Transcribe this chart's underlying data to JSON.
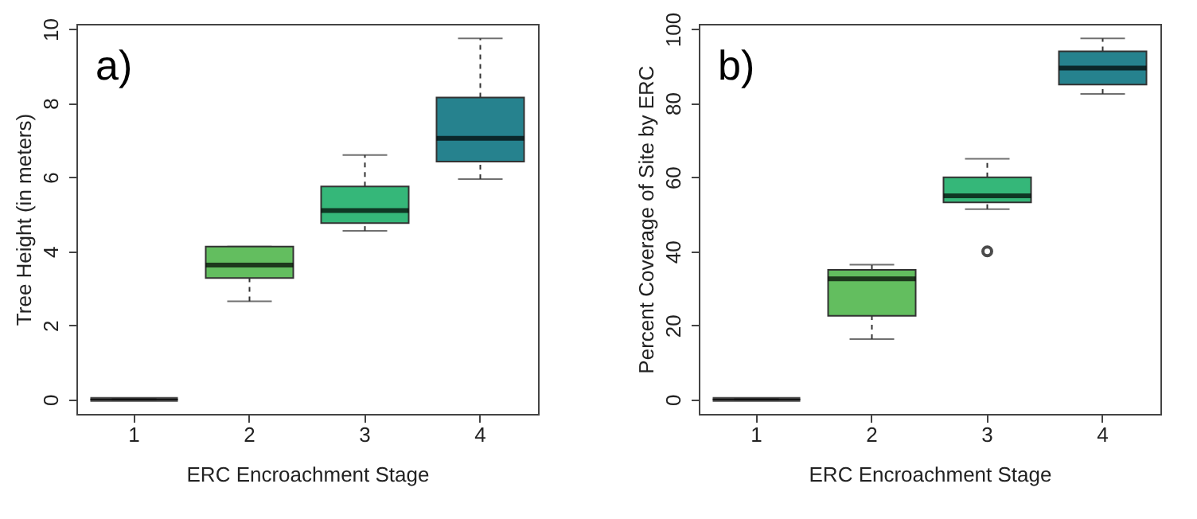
{
  "chart_data": [
    {
      "type": "box",
      "xlabel": "ERC Encroachment Stage",
      "ylabel": "Tree Height (in meters)",
      "annotations": [
        "a)"
      ],
      "categories": [
        "1",
        "2",
        "3",
        "4"
      ],
      "colors": [
        null,
        "#63be5f",
        "#35b779",
        "#26828e"
      ],
      "ylim": [
        -0.39,
        10.14
      ],
      "yticks": [
        0,
        2,
        4,
        6,
        8,
        10
      ],
      "grid": false,
      "boxes": [
        {
          "low": 0,
          "q1": 0,
          "median": 0,
          "q3": 0,
          "high": 0
        },
        {
          "low": 2.65,
          "q1": 3.28,
          "median": 3.63,
          "q3": 4.13,
          "high": 4.13
        },
        {
          "low": 4.55,
          "q1": 4.76,
          "median": 5.1,
          "q3": 5.75,
          "high": 6.6
        },
        {
          "low": 5.95,
          "q1": 6.42,
          "median": 7.05,
          "q3": 8.15,
          "high": 9.75
        }
      ]
    },
    {
      "type": "box",
      "xlabel": "ERC Encroachment Stage",
      "ylabel": "Percent Coverage of Site by ERC",
      "annotations": [
        "b)"
      ],
      "categories": [
        "1",
        "2",
        "3",
        "4"
      ],
      "colors": [
        null,
        "#63be5f",
        "#35b779",
        "#26828e"
      ],
      "ylim": [
        -3.9,
        101.4
      ],
      "yticks": [
        0,
        20,
        40,
        60,
        80,
        100
      ],
      "grid": false,
      "boxes": [
        {
          "low": 0,
          "q1": 0,
          "median": 0,
          "q3": 0,
          "high": 0
        },
        {
          "low": 16.3,
          "q1": 22.6,
          "median": 32.6,
          "q3": 35,
          "high": 36.4
        },
        {
          "low": 51.4,
          "q1": 53.2,
          "median": 55,
          "q3": 60,
          "high": 65,
          "outliers": [
            40
          ]
        },
        {
          "low": 82.5,
          "q1": 85,
          "median": 89.5,
          "q3": 94,
          "high": 97.5
        }
      ]
    }
  ]
}
